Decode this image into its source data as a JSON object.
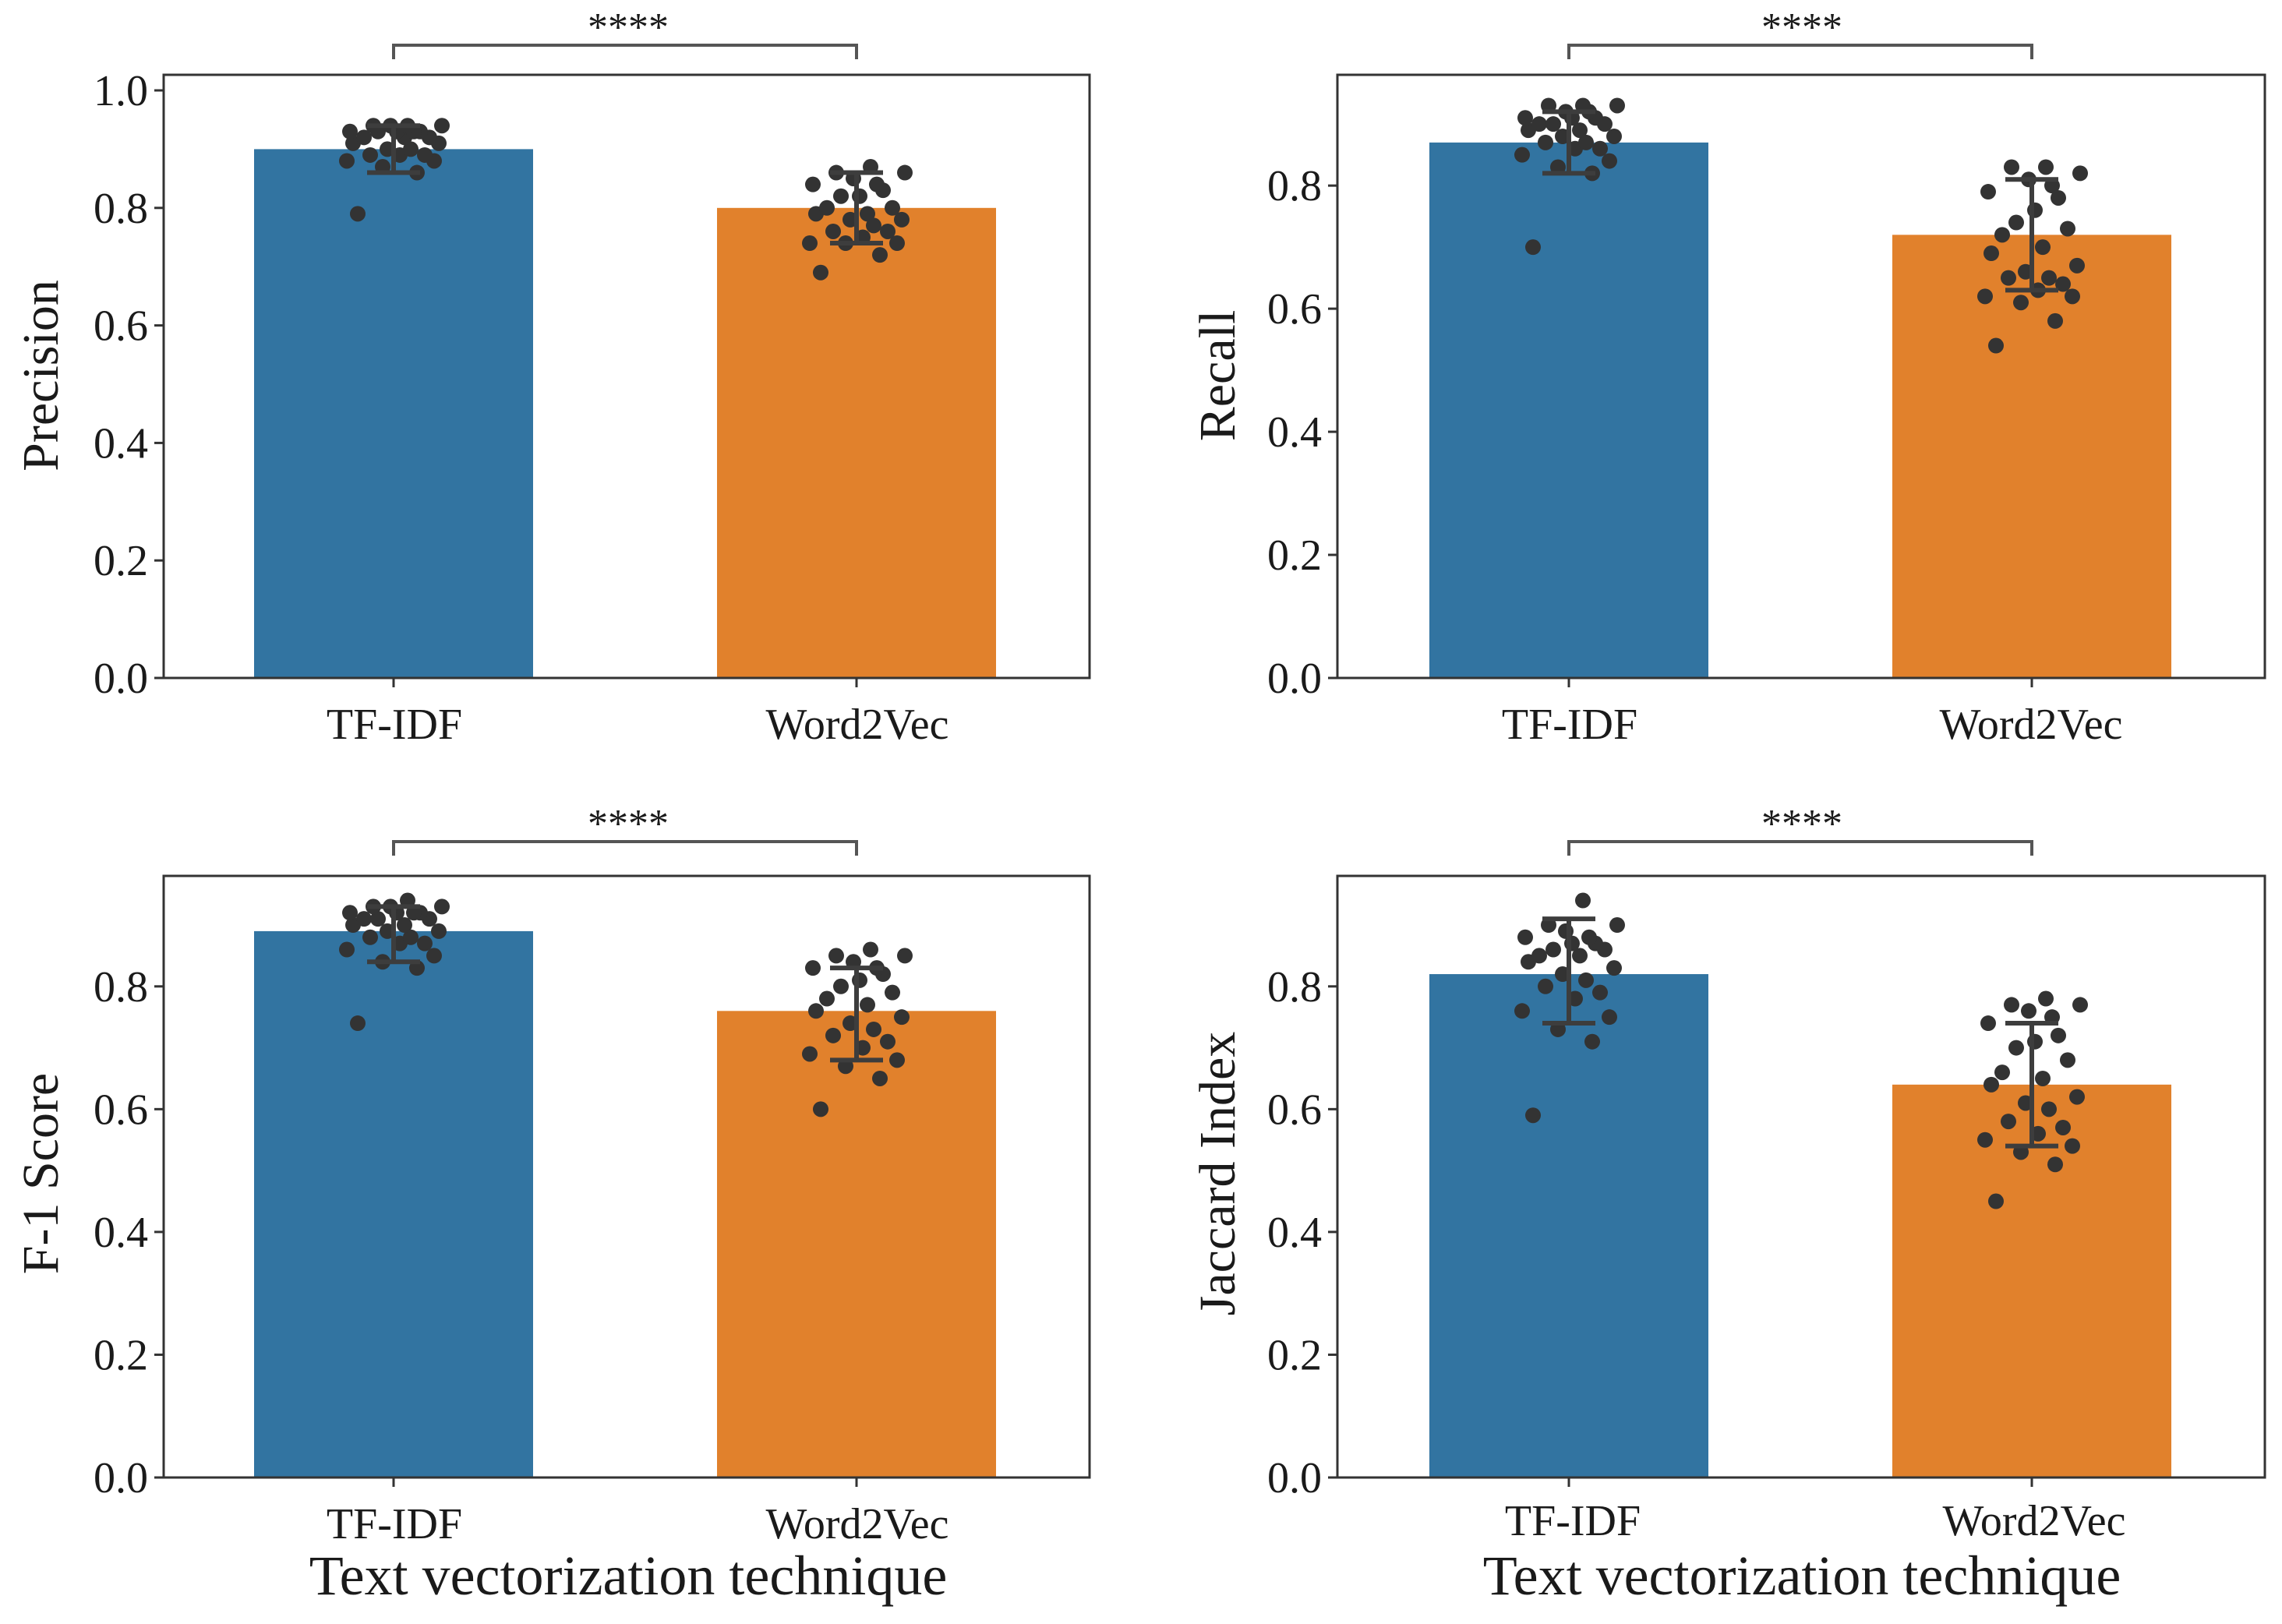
{
  "colors": {
    "tfidf": "#3274a1",
    "word2vec": "#e1812c",
    "error": "#3d3d3d",
    "point": "#333333",
    "axis": "#333333"
  },
  "chart_data": [
    {
      "type": "bar",
      "categories": [
        "TF-IDF",
        "Word2Vec"
      ],
      "values": [
        0.9,
        0.8
      ],
      "error_bars": [
        [
          0.86,
          0.94
        ],
        [
          0.74,
          0.86
        ]
      ],
      "points": [
        [
          0.79,
          0.86,
          0.87,
          0.88,
          0.88,
          0.89,
          0.89,
          0.89,
          0.9,
          0.9,
          0.91,
          0.91,
          0.92,
          0.92,
          0.92,
          0.93,
          0.93,
          0.93,
          0.93,
          0.93,
          0.94,
          0.94,
          0.94,
          0.94
        ],
        [
          0.69,
          0.72,
          0.74,
          0.74,
          0.74,
          0.75,
          0.76,
          0.76,
          0.77,
          0.78,
          0.78,
          0.79,
          0.79,
          0.8,
          0.8,
          0.82,
          0.82,
          0.83,
          0.84,
          0.84,
          0.85,
          0.86,
          0.86,
          0.87
        ]
      ],
      "significance": "****",
      "title": "",
      "xlabel": "",
      "ylabel": "Precision",
      "ylim": [
        0,
        1.0
      ],
      "yticks": [
        "0.0",
        "0.2",
        "0.4",
        "0.6",
        "0.8",
        "1.0"
      ]
    },
    {
      "type": "bar",
      "categories": [
        "TF-IDF",
        "Word2Vec"
      ],
      "values": [
        0.87,
        0.72
      ],
      "error_bars": [
        [
          0.82,
          0.92
        ],
        [
          0.63,
          0.81
        ]
      ],
      "points": [
        [
          0.7,
          0.82,
          0.83,
          0.84,
          0.85,
          0.86,
          0.86,
          0.87,
          0.87,
          0.88,
          0.88,
          0.89,
          0.89,
          0.9,
          0.9,
          0.9,
          0.91,
          0.91,
          0.91,
          0.92,
          0.92,
          0.93,
          0.93,
          0.93
        ],
        [
          0.54,
          0.58,
          0.61,
          0.62,
          0.62,
          0.63,
          0.64,
          0.65,
          0.65,
          0.66,
          0.67,
          0.69,
          0.7,
          0.72,
          0.73,
          0.74,
          0.76,
          0.78,
          0.79,
          0.8,
          0.81,
          0.82,
          0.83,
          0.83
        ]
      ],
      "significance": "****",
      "title": "",
      "xlabel": "",
      "ylabel": "Recall",
      "ylim": [
        0,
        0.98
      ],
      "yticks": [
        "0.0",
        "0.2",
        "0.4",
        "0.6",
        "0.8"
      ]
    },
    {
      "type": "bar",
      "categories": [
        "TF-IDF",
        "Word2Vec"
      ],
      "values": [
        0.89,
        0.76
      ],
      "error_bars": [
        [
          0.84,
          0.93
        ],
        [
          0.68,
          0.83
        ]
      ],
      "points": [
        [
          0.74,
          0.83,
          0.84,
          0.85,
          0.86,
          0.87,
          0.87,
          0.88,
          0.88,
          0.89,
          0.89,
          0.9,
          0.9,
          0.91,
          0.91,
          0.91,
          0.92,
          0.92,
          0.92,
          0.92,
          0.93,
          0.93,
          0.93,
          0.94
        ],
        [
          0.6,
          0.65,
          0.67,
          0.68,
          0.69,
          0.7,
          0.71,
          0.72,
          0.73,
          0.74,
          0.75,
          0.76,
          0.77,
          0.78,
          0.79,
          0.8,
          0.81,
          0.82,
          0.83,
          0.83,
          0.84,
          0.85,
          0.85,
          0.86
        ]
      ],
      "significance": "****",
      "title": "",
      "xlabel": "Text vectorization technique",
      "ylabel": "F-1 Score",
      "ylim": [
        0,
        0.98
      ],
      "yticks": [
        "0.0",
        "0.2",
        "0.4",
        "0.6",
        "0.8"
      ]
    },
    {
      "type": "bar",
      "categories": [
        "TF-IDF",
        "Word2Vec"
      ],
      "values": [
        0.82,
        0.64
      ],
      "error_bars": [
        [
          0.74,
          0.91
        ],
        [
          0.54,
          0.74
        ]
      ],
      "points": [
        [
          0.59,
          0.71,
          0.73,
          0.75,
          0.76,
          0.78,
          0.79,
          0.8,
          0.81,
          0.82,
          0.83,
          0.84,
          0.85,
          0.85,
          0.86,
          0.86,
          0.87,
          0.87,
          0.88,
          0.88,
          0.89,
          0.9,
          0.9,
          0.94
        ],
        [
          0.45,
          0.51,
          0.53,
          0.54,
          0.55,
          0.56,
          0.57,
          0.58,
          0.6,
          0.61,
          0.62,
          0.64,
          0.65,
          0.66,
          0.68,
          0.7,
          0.71,
          0.72,
          0.74,
          0.75,
          0.76,
          0.77,
          0.77,
          0.78
        ]
      ],
      "significance": "****",
      "title": "",
      "xlabel": "Text vectorization technique",
      "ylabel": "Jaccard Index",
      "ylim": [
        0,
        0.98
      ],
      "yticks": [
        "0.0",
        "0.2",
        "0.4",
        "0.6",
        "0.8"
      ]
    }
  ]
}
